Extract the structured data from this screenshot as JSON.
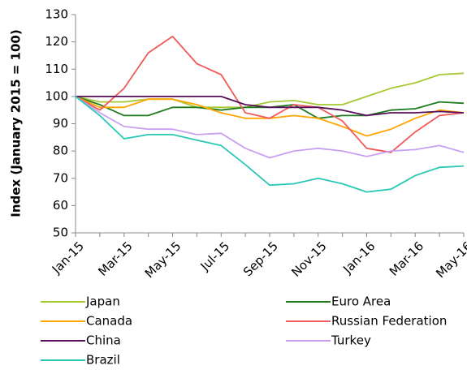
{
  "chart_data": {
    "type": "line",
    "y_label": "Index (January 2015 = 100)",
    "categories": [
      "Jan-15",
      null,
      "Mar-15",
      null,
      "May-15",
      null,
      "Jul-15",
      null,
      "Sep-15",
      null,
      "Nov-15",
      null,
      "Jan-16",
      null,
      "Mar-16",
      null,
      "May-16"
    ],
    "series": [
      {
        "name": "Japan",
        "color": "#a6c832",
        "values": [
          100,
          98,
          98,
          99,
          99,
          96,
          96,
          96,
          98,
          98.5,
          97,
          97,
          100,
          103,
          105,
          108,
          108.5
        ]
      },
      {
        "name": "Euro Area",
        "color": "#1e7b1e",
        "values": [
          100,
          97,
          93,
          93,
          96,
          96,
          95,
          96,
          96,
          97,
          92,
          93,
          93,
          95,
          95.5,
          98,
          97.5
        ]
      },
      {
        "name": "Canada",
        "color": "#ffa500",
        "values": [
          100,
          96,
          96,
          99,
          99,
          97,
          94,
          92,
          92,
          93,
          92,
          89,
          85.5,
          88,
          92,
          95,
          94
        ]
      },
      {
        "name": "Russian Federation",
        "color": "#f05a5a",
        "values": [
          100,
          95,
          103,
          116,
          122,
          112,
          108,
          94,
          92,
          97,
          96,
          91,
          81,
          79.5,
          87,
          93,
          94
        ]
      },
      {
        "name": "China",
        "color": "#5a0f5a",
        "values": [
          100,
          100,
          100,
          100,
          100,
          100,
          100,
          97,
          96,
          96,
          96,
          95,
          93,
          94,
          94,
          94.5,
          94
        ]
      },
      {
        "name": "Turkey",
        "color": "#c8a0f0",
        "values": [
          100,
          94,
          89,
          88,
          88,
          86,
          86.5,
          81,
          77.5,
          80,
          81,
          80,
          78,
          80,
          80.5,
          82,
          79.5
        ]
      },
      {
        "name": "Brazil",
        "color": "#28c8b4",
        "values": [
          100,
          93,
          84.5,
          86,
          86,
          84,
          82,
          75,
          67.5,
          68,
          70,
          68,
          65,
          66,
          71,
          74,
          74.5
        ]
      }
    ],
    "ylim": [
      50,
      130
    ],
    "yticks": [
      50,
      60,
      70,
      80,
      90,
      100,
      110,
      120,
      130
    ],
    "grid": false
  }
}
